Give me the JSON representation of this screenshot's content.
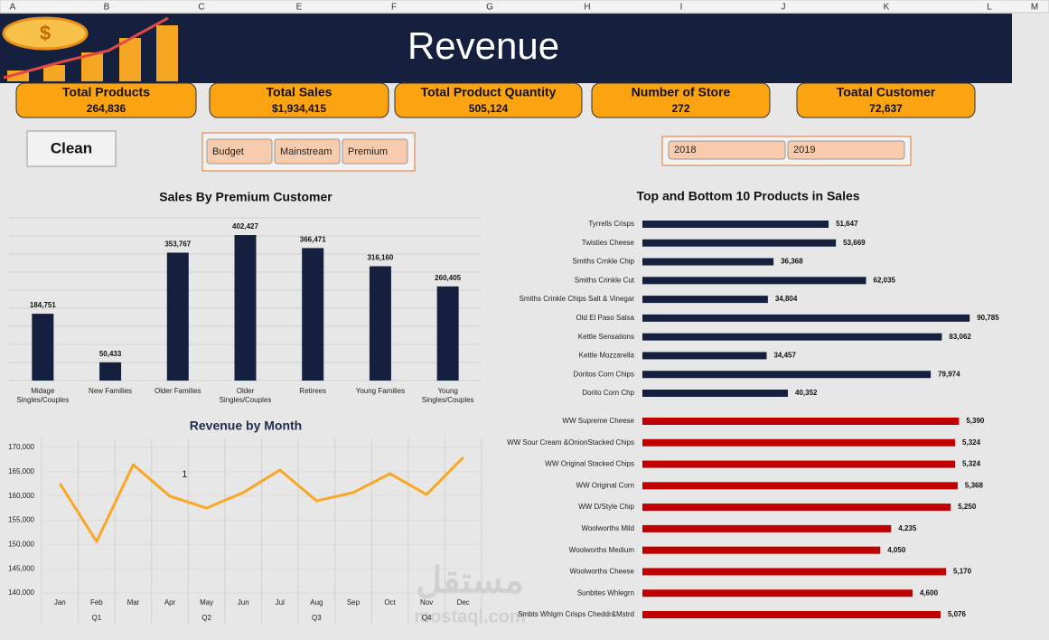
{
  "columns": [
    "A",
    "B",
    "C",
    "E",
    "F",
    "G",
    "H",
    "I",
    "J",
    "K",
    "L",
    "M"
  ],
  "header": {
    "title": "Revenue"
  },
  "kpis": [
    {
      "label": "Total Products",
      "value": "264,836"
    },
    {
      "label": "Total Sales",
      "value": "$1,934,415"
    },
    {
      "label": "Total Product Quantity",
      "value": "505,124"
    },
    {
      "label": "Number of Store",
      "value": "272"
    },
    {
      "label": "Toatal Customer",
      "value": "72,637"
    }
  ],
  "clean_button": "Clean",
  "slicers": {
    "segment": [
      "Budget",
      "Mainstream",
      "Premium"
    ],
    "year": [
      "2018",
      "2019"
    ]
  },
  "watermark": {
    "arabic": "مستقل",
    "latin": "mostaql.com"
  },
  "chart_data": [
    {
      "type": "bar",
      "title": "Sales By Premium Customer",
      "categories": [
        "Midage Singles/Couples",
        "New Families",
        "Older Families",
        "Older Singles/Couples",
        "Retirees",
        "Young Families",
        "Young Singles/Couples"
      ],
      "values": [
        184751,
        50433,
        353767,
        402427,
        366471,
        316160,
        260405
      ],
      "value_labels": [
        "184,751",
        "50,433",
        "353,767",
        "402,427",
        "366,471",
        "316,160",
        "260,405"
      ],
      "color": "#14203d",
      "ylim": [
        0,
        450000
      ],
      "grid_lines": [
        0,
        50000,
        100000,
        150000,
        200000,
        250000,
        300000,
        350000,
        400000,
        450000
      ]
    },
    {
      "type": "hbar",
      "title": "Top and Bottom 10 Products in Sales",
      "categories": [
        "Tyrrells Crisps",
        "Twisties Cheese",
        "Smiths Crnkle Chip",
        "Smiths Crinkle Cut",
        "Smiths Crinkle Chips Salt & Vinegar",
        "Old El Paso Salsa",
        "Kettle Sensations",
        "Kettle Mozzarella",
        "Doritos Corn Chips",
        "Dorito Corn Chp"
      ],
      "values": [
        51647,
        53669,
        36368,
        62035,
        34804,
        90785,
        83062,
        34457,
        79974,
        40352
      ],
      "value_labels": [
        "51,647",
        "53,669",
        "36,368",
        "62,035",
        "34,804",
        "90,785",
        "83,062",
        "34,457",
        "79,974",
        "40,352"
      ],
      "color": "#14203d",
      "xlim": [
        0,
        100000
      ]
    },
    {
      "type": "hbar",
      "categories": [
        "WW Supreme Cheese",
        "WW Sour Cream &OnionStacked Chips",
        "WW Original Stacked Chips",
        "WW Original Corn",
        "WW D/Style Chip",
        "Woolworths Mild",
        "Woolworths Medium",
        "Woolworths Cheese",
        "Sunbites Whlegrn",
        "Smbts Whlgrn Crisps Cheddr&Mstrd"
      ],
      "values": [
        5390,
        5324,
        5324,
        5368,
        5250,
        4235,
        4050,
        5170,
        4600,
        5076
      ],
      "value_labels": [
        "5,390",
        "5,324",
        "5,324",
        "5,368",
        "5,250",
        "4,235",
        "4,050",
        "5,170",
        "4,600",
        "5,076"
      ],
      "color": "#c00000",
      "xlim": [
        0,
        6000
      ]
    },
    {
      "type": "line",
      "title": "Revenue by Month",
      "categories": [
        "Jan",
        "Feb",
        "Mar",
        "Apr",
        "May",
        "Jun",
        "Jul",
        "Aug",
        "Sep",
        "Oct",
        "Nov",
        "Dec"
      ],
      "quarters": [
        "Q1",
        "Q2",
        "Q3",
        "Q4"
      ],
      "values": [
        162550,
        150600,
        166450,
        159950,
        157500,
        160700,
        165350,
        159000,
        160700,
        164600,
        160300,
        167950
      ],
      "color": "#f9a825",
      "annotation": "1",
      "ylim": [
        140000,
        170000
      ],
      "yticks": [
        {
          "value": 140000,
          "label": "140,000"
        },
        {
          "value": 145000,
          "label": "145,000"
        },
        {
          "value": 150000,
          "label": "150,000"
        },
        {
          "value": 155000,
          "label": "155,000"
        },
        {
          "value": 160000,
          "label": "160,000"
        },
        {
          "value": 165000,
          "label": "165,000"
        },
        {
          "value": 170000,
          "label": "170,000"
        }
      ]
    }
  ]
}
